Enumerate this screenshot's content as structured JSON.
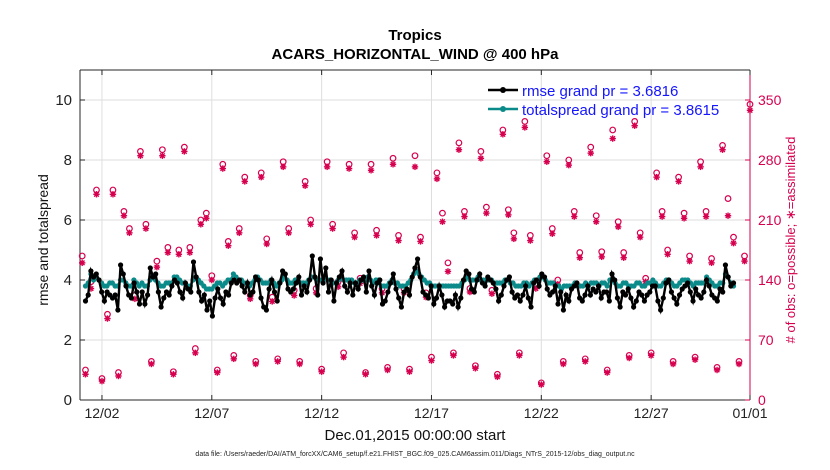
{
  "chart_data": {
    "type": "line",
    "title": "Tropics",
    "subtitle": "ACARS_HORIZONTAL_WIND @ 400 hPa",
    "xlabel": "Dec.01,2015 00:00:00 start",
    "ylabel": "rmse and totalspread",
    "y2label": "# of obs: o=possible; ∗=assimilated",
    "footnote": "data file: /Users/raeder/DAI/ATM_forcXX/CAM6_setup/f.e21.FHIST_BGC.f09_025.CAM6assim.011/Diags_NTrS_2015-12/obs_diag_output.nc",
    "xlim": [
      0.5,
      31.0
    ],
    "ylim": [
      0,
      11
    ],
    "y2lim": [
      0,
      385
    ],
    "xticks": [
      1.5,
      6.5,
      11.5,
      16.5,
      21.5,
      26.5,
      31.0
    ],
    "xtick_labels": [
      "12/02",
      "12/07",
      "12/12",
      "12/17",
      "12/22",
      "12/27",
      "01/01"
    ],
    "yticks": [
      0,
      2,
      4,
      6,
      8,
      10
    ],
    "y2ticks": [
      0,
      70,
      140,
      210,
      280,
      350
    ],
    "grid": true,
    "legend_position": "top-right",
    "series": [
      {
        "name": "rmse grand pr = 3.6816",
        "color": "#000000",
        "marker": "circle",
        "values": [
          3.3,
          3.5,
          4.3,
          4.1,
          4.2,
          4.0,
          3.6,
          3.3,
          3.6,
          3.5,
          3.4,
          3.5,
          3.0,
          4.5,
          4.2,
          3.8,
          3.5,
          3.4,
          3.9,
          3.6,
          3.2,
          3.6,
          3.2,
          3.5,
          4.4,
          4.1,
          4.2,
          3.6,
          3.1,
          3.4,
          3.6,
          3.5,
          3.8,
          4.0,
          3.9,
          3.6,
          3.4,
          3.9,
          3.7,
          3.6,
          4.6,
          4.1,
          3.6,
          3.3,
          3.5,
          3.0,
          3.3,
          2.8,
          3.4,
          3.7,
          3.4,
          3.2,
          3.6,
          3.5,
          3.9,
          4.0,
          3.9,
          4.0,
          3.8,
          3.6,
          3.9,
          3.5,
          3.6,
          4.1,
          4.0,
          3.4,
          3.1,
          3.0,
          3.7,
          4.0,
          3.6,
          3.3,
          3.9,
          4.3,
          4.2,
          3.7,
          3.6,
          3.7,
          3.9,
          4.1,
          3.5,
          3.8,
          3.6,
          4.0,
          4.8,
          4.1,
          3.5,
          4.7,
          3.9,
          4.4,
          3.6,
          4.0,
          3.3,
          3.9,
          4.1,
          4.3,
          3.8,
          3.6,
          3.9,
          3.5,
          3.9,
          3.7,
          4.0,
          4.1,
          3.6,
          4.3,
          3.8,
          3.5,
          3.9,
          4.0,
          3.2,
          3.3,
          3.6,
          3.9,
          4.2,
          3.7,
          3.4,
          3.1,
          3.6,
          3.7,
          3.5,
          4.1,
          4.4,
          4.7,
          4.1,
          3.6,
          3.5,
          3.4,
          3.8,
          3.2,
          3.4,
          3.8,
          3.5,
          3.1,
          3.3,
          3.3,
          3.2,
          3.5,
          3.1,
          3.4,
          4.0,
          4.3,
          4.2,
          3.7,
          3.6,
          4.0,
          4.2,
          3.9,
          3.8,
          4.1,
          4.0,
          3.9,
          3.7,
          3.3,
          3.5,
          3.8,
          4.0,
          4.1,
          3.6,
          3.4,
          3.5,
          3.3,
          3.5,
          3.8,
          3.4,
          3.1,
          3.9,
          4.0,
          3.8,
          4.2,
          4.1,
          3.7,
          3.5,
          3.6,
          3.8,
          3.2,
          3.6,
          3.0,
          3.5,
          3.3,
          3.7,
          3.8,
          3.9,
          3.4,
          3.3,
          3.5,
          3.8,
          3.5,
          3.7,
          3.6,
          3.8,
          3.4,
          3.6,
          3.6,
          3.3,
          4.2,
          4.0,
          3.4,
          3.1,
          3.6,
          3.5,
          3.7,
          3.4,
          3.1,
          3.3,
          3.6,
          3.5,
          3.3,
          3.5,
          3.6,
          3.8,
          3.8,
          3.3,
          3.0,
          3.4,
          3.9,
          4.0,
          3.6,
          3.4,
          3.2,
          3.5,
          3.7,
          3.8,
          3.9,
          3.6,
          3.3,
          3.7,
          3.5,
          3.4,
          3.6,
          4.0,
          3.8,
          3.5,
          3.4,
          3.3,
          3.7,
          3.6,
          4.5,
          4.1,
          3.8,
          3.9
        ]
      },
      {
        "name": "totalspread grand pr = 3.8615",
        "color": "#0b8a8a",
        "marker": "circle",
        "values": [
          3.8,
          3.9,
          4.2,
          4.0,
          4.1,
          4.0,
          3.9,
          3.8,
          3.8,
          3.9,
          3.9,
          3.8,
          3.8,
          4.0,
          4.0,
          3.9,
          3.8,
          3.8,
          4.0,
          3.9,
          3.8,
          3.9,
          3.8,
          3.8,
          4.0,
          4.1,
          4.0,
          3.9,
          3.8,
          3.8,
          3.9,
          3.9,
          3.9,
          4.1,
          4.1,
          4.0,
          3.9,
          3.9,
          3.8,
          3.8,
          4.0,
          4.1,
          4.0,
          3.9,
          3.8,
          3.7,
          3.7,
          3.7,
          3.8,
          3.9,
          3.9,
          3.8,
          3.9,
          4.0,
          4.0,
          4.2,
          4.1,
          4.0,
          4.0,
          3.9,
          3.9,
          3.8,
          3.9,
          4.0,
          4.1,
          4.0,
          3.9,
          3.9,
          3.9,
          4.0,
          3.9,
          3.8,
          3.9,
          4.0,
          4.1,
          4.0,
          3.9,
          3.9,
          4.0,
          4.0,
          3.9,
          3.9,
          3.9,
          4.0,
          4.1,
          4.1,
          4.0,
          4.0,
          4.0,
          4.1,
          4.0,
          4.0,
          3.9,
          3.9,
          4.0,
          4.1,
          4.0,
          4.0,
          4.0,
          4.0,
          3.9,
          3.9,
          4.0,
          4.0,
          4.0,
          4.1,
          4.0,
          3.9,
          4.0,
          4.0,
          3.8,
          3.8,
          3.8,
          3.9,
          4.0,
          3.9,
          3.9,
          3.8,
          3.8,
          3.8,
          3.9,
          4.0,
          4.2,
          4.3,
          4.2,
          4.1,
          4.0,
          3.9,
          3.9,
          3.8,
          3.8,
          3.8,
          3.8,
          3.8,
          3.8,
          3.8,
          3.8,
          3.8,
          3.8,
          3.8,
          3.9,
          4.0,
          4.1,
          4.0,
          4.0,
          4.0,
          4.1,
          4.0,
          4.0,
          4.0,
          4.0,
          4.0,
          3.9,
          3.9,
          3.9,
          3.9,
          4.0,
          4.0,
          3.9,
          3.9,
          3.8,
          3.8,
          3.8,
          3.9,
          3.9,
          3.8,
          3.9,
          4.0,
          4.0,
          4.1,
          4.1,
          4.0,
          3.9,
          3.9,
          3.9,
          3.8,
          3.8,
          3.7,
          3.8,
          3.8,
          3.8,
          3.8,
          3.9,
          3.8,
          3.8,
          3.8,
          3.9,
          3.8,
          3.9,
          3.9,
          3.9,
          3.8,
          3.9,
          3.9,
          3.8,
          4.0,
          4.0,
          3.9,
          3.8,
          3.8,
          3.9,
          3.9,
          3.8,
          3.8,
          3.8,
          3.9,
          3.9,
          3.8,
          3.8,
          3.9,
          3.9,
          4.0,
          3.9,
          3.8,
          3.8,
          3.9,
          4.0,
          4.0,
          3.9,
          3.8,
          3.8,
          3.9,
          4.0,
          4.0,
          4.0,
          3.9,
          3.8,
          3.9,
          3.9,
          3.9,
          3.9,
          4.1,
          4.0,
          3.9,
          3.8,
          3.8,
          3.9,
          3.9,
          4.2,
          4.1,
          3.9,
          3.8
        ]
      }
    ],
    "obs_possible": [
      [
        0.6,
        168
      ],
      [
        0.75,
        35
      ],
      [
        1.0,
        138
      ],
      [
        1.25,
        245
      ],
      [
        1.5,
        25
      ],
      [
        1.75,
        100
      ],
      [
        2.0,
        245
      ],
      [
        2.25,
        32
      ],
      [
        2.5,
        220
      ],
      [
        2.75,
        200
      ],
      [
        3.0,
        122
      ],
      [
        3.25,
        290
      ],
      [
        3.5,
        205
      ],
      [
        3.75,
        45
      ],
      [
        4.0,
        162
      ],
      [
        4.25,
        292
      ],
      [
        4.5,
        178
      ],
      [
        4.75,
        33
      ],
      [
        5.0,
        175
      ],
      [
        5.25,
        295
      ],
      [
        5.5,
        178
      ],
      [
        5.75,
        60
      ],
      [
        6.0,
        210
      ],
      [
        6.25,
        218
      ],
      [
        6.5,
        145
      ],
      [
        6.75,
        35
      ],
      [
        7.0,
        275
      ],
      [
        7.25,
        185
      ],
      [
        7.5,
        52
      ],
      [
        7.75,
        200
      ],
      [
        8.0,
        260
      ],
      [
        8.25,
        122
      ],
      [
        8.5,
        45
      ],
      [
        8.75,
        265
      ],
      [
        9.0,
        188
      ],
      [
        9.25,
        120
      ],
      [
        9.5,
        48
      ],
      [
        9.75,
        278
      ],
      [
        10.0,
        200
      ],
      [
        10.25,
        128
      ],
      [
        10.5,
        45
      ],
      [
        10.75,
        255
      ],
      [
        11.0,
        210
      ],
      [
        11.25,
        130
      ],
      [
        11.5,
        36
      ],
      [
        11.75,
        278
      ],
      [
        12.0,
        205
      ],
      [
        12.25,
        138
      ],
      [
        12.5,
        55
      ],
      [
        12.75,
        275
      ],
      [
        13.0,
        195
      ],
      [
        13.25,
        142
      ],
      [
        13.5,
        32
      ],
      [
        13.75,
        275
      ],
      [
        14.0,
        198
      ],
      [
        14.25,
        130
      ],
      [
        14.5,
        38
      ],
      [
        14.75,
        282
      ],
      [
        15.0,
        192
      ],
      [
        15.25,
        130
      ],
      [
        15.5,
        36
      ],
      [
        15.75,
        285
      ],
      [
        16.0,
        190
      ],
      [
        16.25,
        125
      ],
      [
        16.5,
        50
      ],
      [
        16.75,
        265
      ],
      [
        17.0,
        218
      ],
      [
        17.25,
        160
      ],
      [
        17.5,
        55
      ],
      [
        17.75,
        300
      ],
      [
        18.0,
        220
      ],
      [
        18.25,
        130
      ],
      [
        18.5,
        40
      ],
      [
        18.75,
        290
      ],
      [
        19.0,
        225
      ],
      [
        19.25,
        128
      ],
      [
        19.5,
        30
      ],
      [
        19.75,
        315
      ],
      [
        20.0,
        222
      ],
      [
        20.25,
        195
      ],
      [
        20.5,
        55
      ],
      [
        20.75,
        325
      ],
      [
        21.0,
        192
      ],
      [
        21.25,
        135
      ],
      [
        21.5,
        20
      ],
      [
        21.75,
        285
      ],
      [
        22.0,
        200
      ],
      [
        22.25,
        140
      ],
      [
        22.5,
        45
      ],
      [
        22.75,
        280
      ],
      [
        23.0,
        220
      ],
      [
        23.25,
        172
      ],
      [
        23.5,
        48
      ],
      [
        23.75,
        295
      ],
      [
        24.0,
        215
      ],
      [
        24.25,
        173
      ],
      [
        24.5,
        35
      ],
      [
        24.75,
        315
      ],
      [
        25.0,
        208
      ],
      [
        25.25,
        172
      ],
      [
        25.5,
        52
      ],
      [
        25.75,
        325
      ],
      [
        26.0,
        195
      ],
      [
        26.25,
        142
      ],
      [
        26.5,
        55
      ],
      [
        26.75,
        265
      ],
      [
        27.0,
        220
      ],
      [
        27.25,
        175
      ],
      [
        27.5,
        45
      ],
      [
        27.75,
        260
      ],
      [
        28.0,
        218
      ],
      [
        28.25,
        168
      ],
      [
        28.5,
        50
      ],
      [
        28.75,
        278
      ],
      [
        29.0,
        220
      ],
      [
        29.25,
        165
      ],
      [
        29.5,
        38
      ],
      [
        29.75,
        297
      ],
      [
        30.0,
        235
      ],
      [
        30.25,
        190
      ],
      [
        30.5,
        45
      ],
      [
        30.75,
        168
      ],
      [
        31.0,
        345
      ]
    ],
    "obs_assimilated": [
      [
        0.6,
        160
      ],
      [
        0.75,
        30
      ],
      [
        1.0,
        130
      ],
      [
        1.25,
        240
      ],
      [
        1.5,
        22
      ],
      [
        1.75,
        95
      ],
      [
        2.0,
        240
      ],
      [
        2.25,
        28
      ],
      [
        2.5,
        215
      ],
      [
        2.75,
        195
      ],
      [
        3.0,
        118
      ],
      [
        3.25,
        285
      ],
      [
        3.5,
        200
      ],
      [
        3.75,
        42
      ],
      [
        4.0,
        155
      ],
      [
        4.25,
        285
      ],
      [
        4.5,
        172
      ],
      [
        4.75,
        30
      ],
      [
        5.0,
        170
      ],
      [
        5.25,
        290
      ],
      [
        5.5,
        172
      ],
      [
        5.75,
        55
      ],
      [
        6.0,
        205
      ],
      [
        6.25,
        212
      ],
      [
        6.5,
        140
      ],
      [
        6.75,
        32
      ],
      [
        7.0,
        270
      ],
      [
        7.25,
        180
      ],
      [
        7.5,
        48
      ],
      [
        7.75,
        195
      ],
      [
        8.0,
        255
      ],
      [
        8.25,
        118
      ],
      [
        8.5,
        42
      ],
      [
        8.75,
        260
      ],
      [
        9.0,
        182
      ],
      [
        9.25,
        115
      ],
      [
        9.5,
        45
      ],
      [
        9.75,
        272
      ],
      [
        10.0,
        195
      ],
      [
        10.25,
        122
      ],
      [
        10.5,
        42
      ],
      [
        10.75,
        250
      ],
      [
        11.0,
        205
      ],
      [
        11.25,
        125
      ],
      [
        11.5,
        33
      ],
      [
        11.75,
        272
      ],
      [
        12.0,
        200
      ],
      [
        12.25,
        132
      ],
      [
        12.5,
        50
      ],
      [
        12.75,
        270
      ],
      [
        13.0,
        190
      ],
      [
        13.25,
        136
      ],
      [
        13.5,
        30
      ],
      [
        13.75,
        268
      ],
      [
        14.0,
        192
      ],
      [
        14.25,
        125
      ],
      [
        14.5,
        35
      ],
      [
        14.75,
        275
      ],
      [
        15.0,
        186
      ],
      [
        15.25,
        125
      ],
      [
        15.5,
        33
      ],
      [
        15.75,
        272
      ],
      [
        16.0,
        185
      ],
      [
        16.25,
        120
      ],
      [
        16.5,
        46
      ],
      [
        16.75,
        258
      ],
      [
        17.0,
        208
      ],
      [
        17.25,
        150
      ],
      [
        17.5,
        52
      ],
      [
        17.75,
        292
      ],
      [
        18.0,
        214
      ],
      [
        18.25,
        126
      ],
      [
        18.5,
        37
      ],
      [
        18.75,
        282
      ],
      [
        19.0,
        218
      ],
      [
        19.25,
        124
      ],
      [
        19.5,
        27
      ],
      [
        19.75,
        310
      ],
      [
        20.0,
        216
      ],
      [
        20.25,
        188
      ],
      [
        20.5,
        52
      ],
      [
        20.75,
        318
      ],
      [
        21.0,
        186
      ],
      [
        21.25,
        130
      ],
      [
        21.5,
        18
      ],
      [
        21.75,
        278
      ],
      [
        22.0,
        194
      ],
      [
        22.25,
        135
      ],
      [
        22.5,
        42
      ],
      [
        22.75,
        274
      ],
      [
        23.0,
        214
      ],
      [
        23.25,
        166
      ],
      [
        23.5,
        45
      ],
      [
        23.75,
        288
      ],
      [
        24.0,
        208
      ],
      [
        24.25,
        167
      ],
      [
        24.5,
        32
      ],
      [
        24.75,
        305
      ],
      [
        25.0,
        202
      ],
      [
        25.25,
        166
      ],
      [
        25.5,
        49
      ],
      [
        25.75,
        320
      ],
      [
        26.0,
        190
      ],
      [
        26.25,
        138
      ],
      [
        26.5,
        52
      ],
      [
        26.75,
        260
      ],
      [
        27.0,
        214
      ],
      [
        27.25,
        170
      ],
      [
        27.5,
        42
      ],
      [
        27.75,
        255
      ],
      [
        28.0,
        212
      ],
      [
        28.25,
        162
      ],
      [
        28.5,
        47
      ],
      [
        28.75,
        272
      ],
      [
        29.0,
        214
      ],
      [
        29.25,
        160
      ],
      [
        29.5,
        35
      ],
      [
        29.75,
        292
      ],
      [
        30.0,
        215
      ],
      [
        30.25,
        183
      ],
      [
        30.5,
        42
      ],
      [
        30.75,
        162
      ],
      [
        31.0,
        338
      ]
    ]
  }
}
